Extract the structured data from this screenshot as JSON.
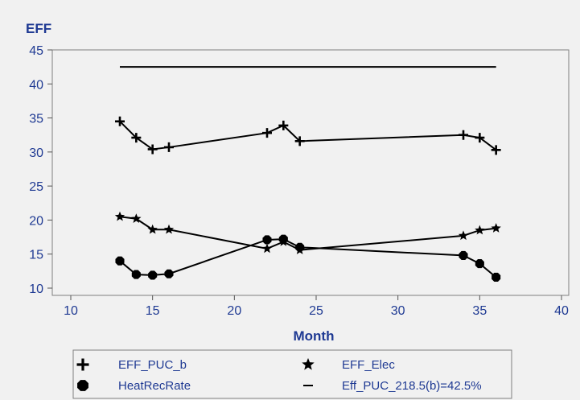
{
  "chart_data": {
    "type": "line",
    "title": "",
    "xlabel": "Month",
    "ylabel": "EFF",
    "xlim": [
      10,
      40
    ],
    "ylim": [
      10,
      45
    ],
    "xticks": [
      "10",
      "15",
      "20",
      "25",
      "30",
      "35",
      "40"
    ],
    "yticks": [
      "10",
      "15",
      "20",
      "25",
      "30",
      "35",
      "40",
      "45"
    ],
    "grid": false,
    "legend_position": "bottom",
    "series": [
      {
        "name": "EFF_PUC_b",
        "marker": "plus",
        "color": "#000000",
        "points": [
          [
            13,
            34.5
          ],
          [
            14,
            32.1
          ],
          [
            15,
            30.4
          ],
          [
            16,
            30.7
          ],
          [
            22,
            32.8
          ],
          [
            23,
            33.9
          ],
          [
            24,
            31.6
          ],
          [
            34,
            32.5
          ],
          [
            35,
            32.1
          ],
          [
            36,
            30.3
          ]
        ]
      },
      {
        "name": "EFF_Elec",
        "marker": "star",
        "color": "#000000",
        "points": [
          [
            13,
            20.5
          ],
          [
            14,
            20.2
          ],
          [
            15,
            18.6
          ],
          [
            16,
            18.6
          ],
          [
            22,
            15.8
          ],
          [
            23,
            16.8
          ],
          [
            24,
            15.6
          ],
          [
            34,
            17.7
          ],
          [
            35,
            18.5
          ],
          [
            36,
            18.8
          ]
        ]
      },
      {
        "name": "HeatRecRate",
        "marker": "hexagon",
        "color": "#000000",
        "points": [
          [
            13,
            14.0
          ],
          [
            14,
            12.0
          ],
          [
            15,
            11.9
          ],
          [
            16,
            12.1
          ],
          [
            22,
            17.1
          ],
          [
            23,
            17.2
          ],
          [
            24,
            16.0
          ],
          [
            34,
            14.8
          ],
          [
            35,
            13.6
          ],
          [
            36,
            11.6
          ]
        ]
      },
      {
        "name": "Eff_PUC_218.5(b)=42.5%",
        "marker": "none",
        "color": "#000000",
        "points": [
          [
            13,
            42.5
          ],
          [
            36,
            42.5
          ]
        ]
      }
    ]
  }
}
